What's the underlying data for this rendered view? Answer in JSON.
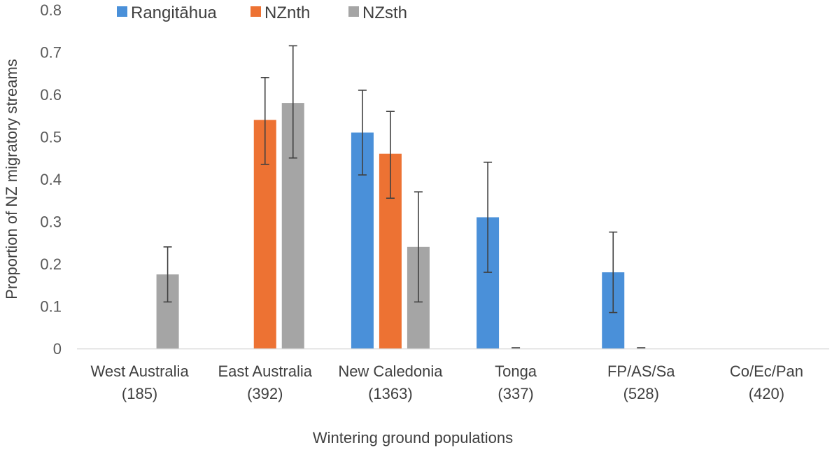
{
  "chart_data": {
    "type": "bar",
    "title": "",
    "xlabel": "Wintering ground populations",
    "ylabel": "Proportion of NZ migratory streams",
    "ylim": [
      0,
      0.8
    ],
    "yticks": [
      "0",
      "0.1",
      "0.2",
      "0.3",
      "0.4",
      "0.5",
      "0.6",
      "0.7",
      "0.8"
    ],
    "categories": [
      {
        "name": "West Australia",
        "n": "(185)"
      },
      {
        "name": "East Australia",
        "n": "(392)"
      },
      {
        "name": "New Caledonia",
        "n": "(1363)"
      },
      {
        "name": "Tonga",
        "n": "(337)"
      },
      {
        "name": "FP/AS/Sa",
        "n": "(528)"
      },
      {
        "name": "Co/Ec/Pan",
        "n": "(420)"
      }
    ],
    "series": [
      {
        "name": "Rangitāhua",
        "color": "#4a90d9",
        "values": [
          0,
          0,
          0.51,
          0.31,
          0.18,
          0
        ],
        "err_low": [
          null,
          null,
          0.41,
          0.18,
          0.085,
          null
        ],
        "err_high": [
          null,
          null,
          0.61,
          0.44,
          0.275,
          null
        ]
      },
      {
        "name": "NZnth",
        "color": "#ed7233",
        "values": [
          0,
          0.54,
          0.46,
          0,
          0,
          0
        ],
        "err_low": [
          null,
          0.435,
          0.355,
          0,
          0,
          null
        ],
        "err_high": [
          null,
          0.64,
          0.56,
          0,
          0,
          null
        ]
      },
      {
        "name": "NZsth",
        "color": "#a5a5a5",
        "values": [
          0.175,
          0.58,
          0.24,
          0,
          0,
          0
        ],
        "err_low": [
          0.11,
          0.45,
          0.11,
          null,
          null,
          null
        ],
        "err_high": [
          0.24,
          0.715,
          0.37,
          null,
          null,
          null
        ]
      }
    ],
    "grid": false,
    "legend_position": "top"
  }
}
